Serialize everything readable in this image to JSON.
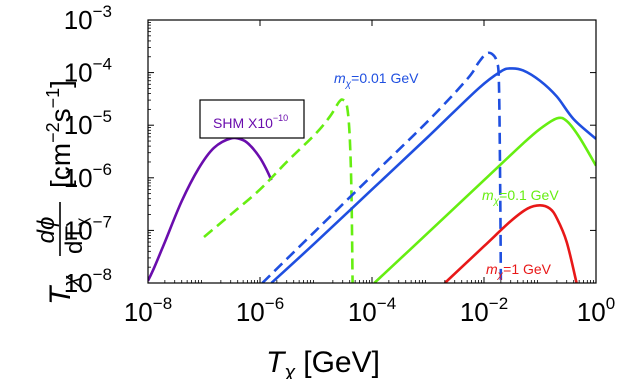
{
  "chart_data": {
    "type": "line",
    "x_scale": "log",
    "y_scale": "log",
    "xlim": [
      1e-08,
      1
    ],
    "ylim": [
      1e-08,
      0.001
    ],
    "xlabel": {
      "symbol": "T",
      "sub": "χ",
      "unit": "[GeV]"
    },
    "ylabel": {
      "prefix": "T",
      "prefix_sub": "χ",
      "num": "dϕ",
      "den": "dT",
      "den_sub": "χ",
      "unit": "[cm",
      "exp1": "−2",
      "mid": "s",
      "exp2": "−1",
      "end": "]"
    },
    "x_ticks": [
      {
        "value": 1e-08,
        "base": "10",
        "exp": "−8"
      },
      {
        "value": 1e-06,
        "base": "10",
        "exp": "−6"
      },
      {
        "value": 0.0001,
        "base": "10",
        "exp": "−4"
      },
      {
        "value": 0.01,
        "base": "10",
        "exp": "−2"
      },
      {
        "value": 1,
        "base": "10",
        "exp": "0"
      }
    ],
    "y_ticks": [
      {
        "value": 1e-08,
        "base": "10",
        "exp": "−8"
      },
      {
        "value": 1e-07,
        "base": "10",
        "exp": "−7"
      },
      {
        "value": 1e-06,
        "base": "10",
        "exp": "−6"
      },
      {
        "value": 1e-05,
        "base": "10",
        "exp": "−5"
      },
      {
        "value": 0.0001,
        "base": "10",
        "exp": "−4"
      },
      {
        "value": 0.001,
        "base": "10",
        "exp": "−3"
      }
    ],
    "annotations": [
      {
        "text": "SHM X10",
        "exp": "−10",
        "color": "#6a0dad",
        "boxed": true
      },
      {
        "italic": "m",
        "sub": "χ",
        "text": "=0.01 GeV",
        "color": "#1f4fe0"
      },
      {
        "italic": "m",
        "sub": "χ",
        "text": "=0.1 GeV",
        "color": "#66ee11"
      },
      {
        "italic": "m",
        "sub": "χ",
        "text": "=1 GeV",
        "color": "#e81818"
      }
    ],
    "series": [
      {
        "id": "shm",
        "color": "#6a0dad",
        "dash": false,
        "x": [
          1e-08,
          1.3e-08,
          2e-08,
          4e-08,
          8e-08,
          1.5e-07,
          3e-07,
          5e-07,
          7e-07,
          1e-06,
          1.3e-06,
          1.6e-06
        ],
        "y": [
          1.1e-08,
          2e-08,
          6e-08,
          3.6e-07,
          1.5e-06,
          3.7e-06,
          5.6e-06,
          5.2e-06,
          3.9e-06,
          2.4e-06,
          1.45e-06,
          9e-07
        ]
      },
      {
        "id": "mchi_0.01_dashed_a",
        "color": "#66ee11",
        "dash": true,
        "x": [
          1e-07,
          3e-07,
          1e-06,
          3e-06,
          1e-05,
          1.8e-05,
          2.6e-05,
          3.1e-05,
          3.6e-05,
          4e-05,
          4.3e-05,
          4.5e-05
        ],
        "y": [
          7.5e-08,
          2e-07,
          6e-07,
          2e-06,
          7e-06,
          1.5e-05,
          2.8e-05,
          3e-05,
          2.2e-05,
          6e-06,
          5e-07,
          1e-08
        ]
      },
      {
        "id": "mchi_0.01_dashed_b",
        "color": "#1f4fe0",
        "dash": true,
        "x": [
          1.1e-06,
          1e-05,
          0.0001,
          0.001,
          0.005,
          0.008,
          0.011,
          0.014,
          0.017,
          0.0185,
          0.0195,
          0.02
        ],
        "y": [
          1e-08,
          1e-07,
          1.1e-06,
          1.2e-05,
          7.5e-05,
          0.000155,
          0.00023,
          0.000225,
          0.00016,
          6e-05,
          5e-07,
          1e-08
        ]
      },
      {
        "id": "mchi_0.01",
        "color": "#1f4fe0",
        "dash": false,
        "x": [
          1.6e-06,
          1e-05,
          0.0001,
          0.001,
          0.008,
          0.02,
          0.03,
          0.05,
          0.1,
          0.2,
          0.4,
          1
        ],
        "y": [
          1e-08,
          6e-08,
          6e-07,
          6e-06,
          5e-05,
          0.000105,
          0.00012,
          0.00011,
          7e-05,
          3.5e-05,
          1.3e-05,
          5.5e-06
        ]
      },
      {
        "id": "mchi_0.1",
        "color": "#66ee11",
        "dash": false,
        "x": [
          0.00011,
          0.001,
          0.01,
          0.05,
          0.1,
          0.2,
          0.3,
          0.5,
          1
        ],
        "y": [
          1e-08,
          9e-08,
          9e-07,
          4.5e-06,
          8.5e-06,
          1.35e-05,
          1.2e-05,
          6e-06,
          1.7e-06
        ]
      },
      {
        "id": "mchi_1",
        "color": "#e81818",
        "dash": false,
        "x": [
          0.002,
          0.01,
          0.03,
          0.06,
          0.1,
          0.15,
          0.2,
          0.3,
          0.45
        ],
        "y": [
          1e-08,
          5e-08,
          1.5e-07,
          2.6e-07,
          3e-07,
          2.6e-07,
          1.7e-07,
          6e-08,
          1e-08
        ]
      }
    ]
  }
}
